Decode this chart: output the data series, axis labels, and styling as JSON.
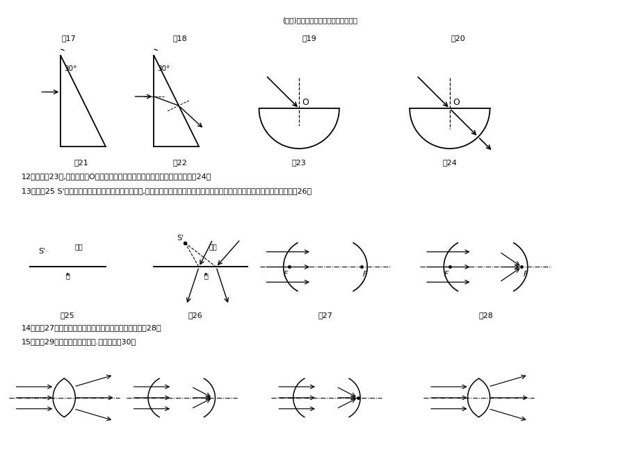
{
  "title": "(完整)中考物理真题光学作图题及答案",
  "bg_color": "#ffffff",
  "line_color": "#000000",
  "text_q12": "12．请在图23中,画出光线从O点（球心）射入玻璃砖的完整光路图。（答案如图24）",
  "text_q13": "13．如图25 S'是潜水员在水中看到的岸上的灯的虚像,请你画出由空气射入水中的折射光线和入射光线的大致的位置。（答案如图26）",
  "text_q14": "14．在图27中画出光经凸透镜折射后的径迹。（答案如图28）",
  "text_q15": "15．将图29中的光路图补充完整.（答案如图30）"
}
